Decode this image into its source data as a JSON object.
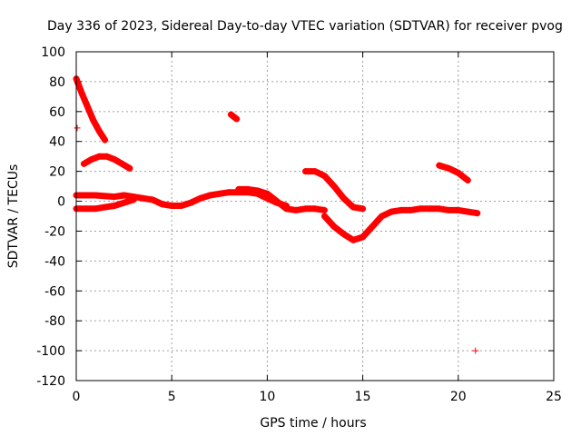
{
  "chart_data": {
    "type": "scatter",
    "title": "Day 336 of 2023, Sidereal Day-to-day VTEC variation (SDTVAR) for receiver pvog",
    "xlabel": "GPS time / hours",
    "ylabel": "SDTVAR / TECUs",
    "xlim": [
      0,
      25
    ],
    "ylim": [
      -120,
      100
    ],
    "xticks": [
      0,
      5,
      10,
      15,
      20,
      25
    ],
    "yticks": [
      -120,
      -100,
      -80,
      -60,
      -40,
      -20,
      0,
      20,
      40,
      60,
      80,
      100
    ],
    "grid": true,
    "marker": "+",
    "color": "#ff0000",
    "series": [
      {
        "name": "arc-steep-descent",
        "x": [
          0.0,
          0.3,
          0.6,
          0.9,
          1.2,
          1.5
        ],
        "y": [
          82,
          72,
          63,
          54,
          47,
          41
        ]
      },
      {
        "name": "point-50",
        "x": [
          0.05
        ],
        "y": [
          49
        ]
      },
      {
        "name": "arc-hump-30",
        "x": [
          0.4,
          0.8,
          1.2,
          1.6,
          2.0,
          2.4,
          2.8
        ],
        "y": [
          25,
          28,
          30,
          30,
          28,
          25,
          22
        ]
      },
      {
        "name": "arc-upper-band",
        "x": [
          0.0,
          1.0,
          2.0,
          2.5,
          3.0,
          3.5,
          4.0,
          4.5,
          5.0,
          5.5,
          6.0,
          6.5,
          7.0,
          7.5,
          8.0,
          8.5,
          9.0,
          9.5,
          10.0,
          10.5,
          11.0
        ],
        "y": [
          4,
          4,
          3,
          4,
          3,
          2,
          1,
          -2,
          -3,
          -3,
          -1,
          2,
          4,
          5,
          6,
          6,
          6,
          5,
          2,
          -1,
          -3
        ]
      },
      {
        "name": "arc-lower-band",
        "x": [
          0.0,
          0.5,
          1.0,
          1.5,
          2.0,
          2.5,
          3.0
        ],
        "y": [
          -5,
          -5,
          -5,
          -4,
          -3,
          -1,
          1
        ]
      },
      {
        "name": "arc-short-57",
        "x": [
          8.1,
          8.4
        ],
        "y": [
          58,
          55
        ]
      },
      {
        "name": "arc-mid",
        "x": [
          8.5,
          9.0,
          9.5,
          10.0,
          10.5,
          11.0,
          11.5,
          12.0,
          12.5,
          13.0
        ],
        "y": [
          8,
          8,
          7,
          5,
          0,
          -5,
          -6,
          -5,
          -5,
          -6
        ]
      },
      {
        "name": "arc-dip",
        "x": [
          13.0,
          13.5,
          14.0,
          14.5,
          15.0,
          15.5,
          16.0,
          16.5,
          17.0,
          17.5,
          18.0,
          18.5,
          19.0,
          19.5,
          20.0,
          20.5,
          21.0
        ],
        "y": [
          -10,
          -17,
          -22,
          -26,
          -24,
          -17,
          -10,
          -7,
          -6,
          -6,
          -5,
          -5,
          -5,
          -6,
          -6,
          -7,
          -8
        ]
      },
      {
        "name": "arc-hump-20",
        "x": [
          12.0,
          12.5,
          13.0,
          13.5,
          14.0,
          14.5,
          15.0
        ],
        "y": [
          20,
          20,
          17,
          10,
          2,
          -4,
          -5
        ]
      },
      {
        "name": "arc-late",
        "x": [
          19.0,
          19.5,
          20.0,
          20.5
        ],
        "y": [
          24,
          22,
          19,
          14
        ]
      },
      {
        "name": "outlier",
        "x": [
          20.9
        ],
        "y": [
          -100
        ]
      }
    ]
  }
}
